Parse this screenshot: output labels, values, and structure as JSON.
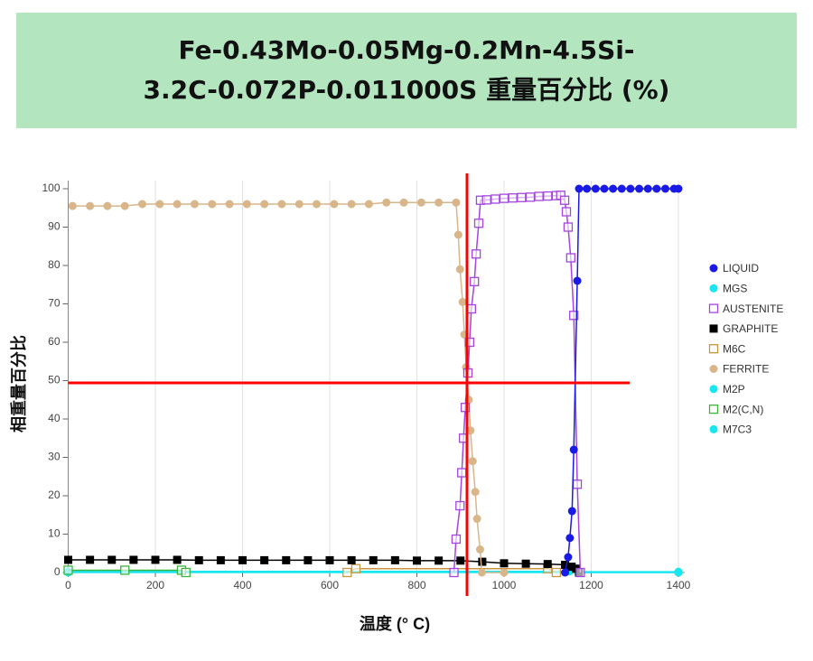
{
  "chart_data": {
    "type": "line",
    "title": [
      "Fe-0.43Mo-0.05Mg-0.2Mn-4.5Si-",
      "3.2C-0.072P-0.011000S 重量百分比 (%)"
    ],
    "x_label": "温度 (°  C)",
    "y_label": "相重量百分比",
    "xlim": [
      0,
      1400
    ],
    "xticks": [
      0,
      200,
      400,
      600,
      800,
      1000,
      1200,
      1400
    ],
    "ylim": [
      0,
      100
    ],
    "yticks": [
      0,
      10,
      20,
      30,
      40,
      50,
      60,
      70,
      80,
      90,
      100
    ],
    "grid": "x",
    "legend": "right",
    "series": [
      {
        "name": "LIQUID",
        "color": "#1a1ae6",
        "marker": "circle-filled",
        "x": [
          1140,
          1147,
          1151,
          1156,
          1160,
          1168,
          1172,
          1190,
          1210,
          1230,
          1250,
          1270,
          1290,
          1310,
          1330,
          1350,
          1370,
          1390,
          1400
        ],
        "values": [
          0,
          4,
          9,
          16,
          32,
          76,
          100,
          100,
          100,
          100,
          100,
          100,
          100,
          100,
          100,
          100,
          100,
          100,
          100
        ]
      },
      {
        "name": "MGS",
        "color": "#19e6f0",
        "marker": "circle-filled",
        "x": [
          0,
          1400
        ],
        "values": [
          0,
          0
        ]
      },
      {
        "name": "AUSTENITE",
        "color": "#a544e0",
        "marker": "square-open",
        "x": [
          885,
          890,
          899,
          903,
          907,
          911,
          917,
          921,
          925,
          932,
          936,
          942,
          946,
          960,
          980,
          1000,
          1020,
          1040,
          1060,
          1080,
          1100,
          1120,
          1130,
          1139,
          1143,
          1147,
          1153,
          1160,
          1168,
          1175
        ],
        "values": [
          0,
          8.7,
          17.4,
          26,
          35,
          43,
          52,
          60,
          68.7,
          75.8,
          83,
          91,
          97,
          97.1,
          97.3,
          97.5,
          97.6,
          97.7,
          97.8,
          98,
          98.1,
          98.2,
          98.3,
          97,
          94,
          90,
          82,
          67,
          23,
          0
        ]
      },
      {
        "name": "GRAPHITE",
        "color": "#000000",
        "marker": "square-filled",
        "x": [
          0,
          50,
          100,
          150,
          200,
          250,
          300,
          350,
          400,
          450,
          500,
          550,
          600,
          650,
          700,
          750,
          800,
          850,
          900,
          950,
          1000,
          1050,
          1100,
          1140,
          1155,
          1165,
          1172
        ],
        "values": [
          3.3,
          3.3,
          3.3,
          3.3,
          3.3,
          3.3,
          3.2,
          3.2,
          3.2,
          3.2,
          3.2,
          3.2,
          3.2,
          3.2,
          3.2,
          3.2,
          3.1,
          3.1,
          3.1,
          2.8,
          2.4,
          2.3,
          2.2,
          2.0,
          1.5,
          1.0,
          0
        ]
      },
      {
        "name": "M6C",
        "color": "#c8963c",
        "marker": "square-open",
        "x": [
          640,
          660,
          1100,
          1120
        ],
        "values": [
          0,
          1,
          1,
          0
        ]
      },
      {
        "name": "FERRITE",
        "color": "#d9b68a",
        "marker": "circle-filled",
        "x": [
          10,
          50,
          90,
          130,
          170,
          210,
          250,
          290,
          330,
          370,
          410,
          450,
          490,
          530,
          570,
          610,
          650,
          690,
          730,
          770,
          810,
          850,
          890,
          895,
          899,
          905,
          909,
          913,
          919,
          923,
          928,
          934,
          938,
          945,
          949,
          1000
        ],
        "values": [
          95.5,
          95.5,
          95.5,
          95.5,
          96,
          96,
          96,
          96,
          96,
          96,
          96,
          96,
          96,
          96,
          96,
          96,
          96,
          96,
          96.4,
          96.4,
          96.4,
          96.4,
          96.4,
          88,
          79,
          70.5,
          62,
          53.5,
          45,
          37,
          29,
          21,
          14,
          6,
          0,
          0
        ]
      },
      {
        "name": "M2P",
        "color": "#19e6f0",
        "marker": "circle-filled",
        "x": [
          0,
          1400
        ],
        "values": [
          0.2,
          0.2
        ]
      },
      {
        "name": "M2(C,N)",
        "color": "#3cb43c",
        "marker": "square-open",
        "x": [
          0,
          130,
          260,
          270
        ],
        "values": [
          0.6,
          0.6,
          0.6,
          0
        ]
      },
      {
        "name": "M7C3",
        "color": "#19e6f0",
        "marker": "circle-filled",
        "x": [
          0,
          1150,
          1170,
          1400
        ],
        "values": [
          0.3,
          0.3,
          0,
          0
        ]
      }
    ],
    "reference_lines": [
      {
        "axis": "x",
        "value": 915,
        "color": "#ff0000"
      },
      {
        "axis": "y",
        "value": 49.4,
        "x_end": 1288,
        "color": "#ff0000"
      }
    ]
  }
}
